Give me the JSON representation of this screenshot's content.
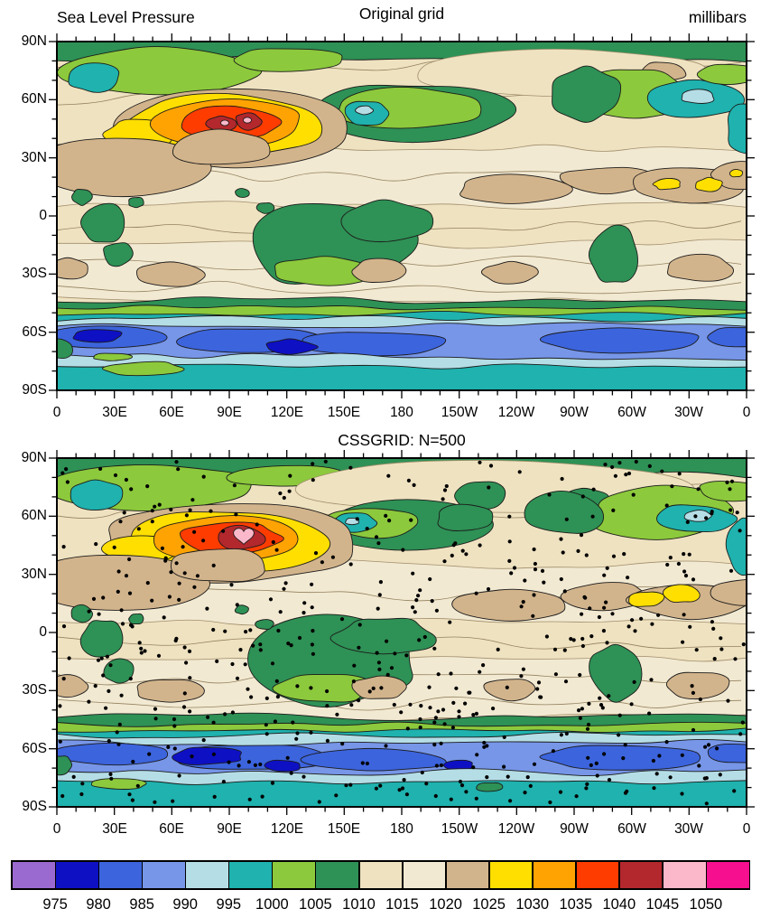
{
  "panel1": {
    "title_left": "Sea Level Pressure",
    "title_center": "Original grid",
    "title_right": "millibars"
  },
  "panel2": {
    "title_center": "CSSGRID: N=500"
  },
  "axes": {
    "lat_labels": [
      "90N",
      "60N",
      "30N",
      "0",
      "30S",
      "60S",
      "90S"
    ],
    "lon_labels": [
      "0",
      "30E",
      "60E",
      "90E",
      "120E",
      "150E",
      "180",
      "150W",
      "120W",
      "90W",
      "60W",
      "30W",
      "0"
    ]
  },
  "colorbar": {
    "labels": [
      "975",
      "980",
      "985",
      "990",
      "995",
      "1000",
      "1005",
      "1010",
      "1015",
      "1020",
      "1025",
      "1030",
      "1035",
      "1040",
      "1045",
      "1050"
    ],
    "colors": [
      "#9b6ad1",
      "#0e10c4",
      "#3c64dd",
      "#7796e8",
      "#b5dde6",
      "#1fb2ae",
      "#8cc93c",
      "#2e9155",
      "#efe2c0",
      "#f2e9d2",
      "#d2b48c",
      "#ffdf00",
      "#ffa302",
      "#ff3c00",
      "#b2282d",
      "#fbb8ca",
      "#f60f8e"
    ]
  },
  "points": {
    "count": 500,
    "color": "#000000"
  },
  "chart_data": [
    {
      "type": "heatmap",
      "subtype": "filled_contour_map",
      "title": "Original grid",
      "left_header": "Sea Level Pressure",
      "right_header": "millibars",
      "field": "sea level pressure",
      "units": "millibars",
      "projection": "global cylindrical equidistant",
      "x_tick_labels": [
        "0",
        "30E",
        "60E",
        "90E",
        "120E",
        "150E",
        "180",
        "150W",
        "120W",
        "90W",
        "60W",
        "30W",
        "0"
      ],
      "y_tick_labels": [
        "90N",
        "60N",
        "30N",
        "0",
        "30S",
        "60S",
        "90S"
      ],
      "lon_range_deg_east": [
        0,
        360
      ],
      "lat_range": [
        -90,
        90
      ],
      "contour_levels": [
        975,
        980,
        985,
        990,
        995,
        1000,
        1005,
        1010,
        1015,
        1020,
        1025,
        1030,
        1035,
        1040,
        1045,
        1050
      ],
      "level_step": 5,
      "fill_colors": [
        "#9b6ad1",
        "#0e10c4",
        "#3c64dd",
        "#7796e8",
        "#b5dde6",
        "#1fb2ae",
        "#8cc93c",
        "#2e9155",
        "#efe2c0",
        "#f2e9d2",
        "#d2b48c",
        "#ffdf00",
        "#ffa302",
        "#ff3c00",
        "#b2282d",
        "#fbb8ca",
        "#f60f8e"
      ],
      "legend": "shared bottom labelbar",
      "notable_extremes": {
        "high_center_approx": {
          "lon": "95E",
          "lat": "50N",
          "value_range": "1045-1050+"
        },
        "low_band_approx": {
          "lat": "55S-65S",
          "value_range": "975-985"
        }
      }
    },
    {
      "type": "heatmap",
      "subtype": "filled_contour_map_with_scatter_overlay",
      "title": "CSSGRID: N=500",
      "field": "sea level pressure regridded with CSSGRID",
      "units": "millibars",
      "projection": "global cylindrical equidistant",
      "x_tick_labels": [
        "0",
        "30E",
        "60E",
        "90E",
        "120E",
        "150E",
        "180",
        "150W",
        "120W",
        "90W",
        "60W",
        "30W",
        "0"
      ],
      "y_tick_labels": [
        "90N",
        "60N",
        "30N",
        "0",
        "30S",
        "60S",
        "90S"
      ],
      "contour_levels": [
        975,
        980,
        985,
        990,
        995,
        1000,
        1005,
        1010,
        1015,
        1020,
        1025,
        1030,
        1035,
        1040,
        1045,
        1050
      ],
      "level_step": 5,
      "fill_colors": [
        "#9b6ad1",
        "#0e10c4",
        "#3c64dd",
        "#7796e8",
        "#b5dde6",
        "#1fb2ae",
        "#8cc93c",
        "#2e9155",
        "#efe2c0",
        "#f2e9d2",
        "#d2b48c",
        "#ffdf00",
        "#ffa302",
        "#ff3c00",
        "#b2282d",
        "#fbb8ca",
        "#f60f8e"
      ],
      "scatter_overlay": {
        "n_points": 500,
        "marker": "filled circle",
        "color": "#000000"
      },
      "legend": "shared bottom labelbar"
    }
  ]
}
